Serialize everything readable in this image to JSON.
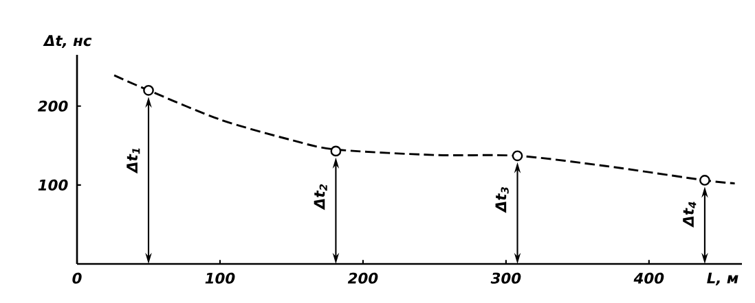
{
  "chart_data": {
    "type": "line",
    "xlabel": "L, м",
    "ylabel": "Δt, нс",
    "xlim": [
      0,
      465
    ],
    "ylim": [
      0,
      265
    ],
    "xticks": [
      0,
      100,
      200,
      300,
      400
    ],
    "yticks": [
      100,
      200
    ],
    "grid": false,
    "series": [
      {
        "color": "#000000",
        "line_style": "dashed",
        "marker": "none",
        "x": [
          26,
          50,
          100,
          150,
          181,
          250,
          308,
          370,
          439,
          460
        ],
        "values": [
          239,
          220,
          183,
          157,
          145,
          138,
          137,
          124,
          106,
          102
        ]
      },
      {
        "type": "scatter",
        "color": "#000000",
        "marker": "circle",
        "x": [
          50,
          181,
          308,
          439
        ],
        "values": [
          220,
          143,
          137,
          106
        ]
      }
    ],
    "annotations": [
      "Δt$_{1}$",
      "Δt$_{2}$",
      "Δt$_{3}$",
      "Δt$_{4}$"
    ]
  }
}
